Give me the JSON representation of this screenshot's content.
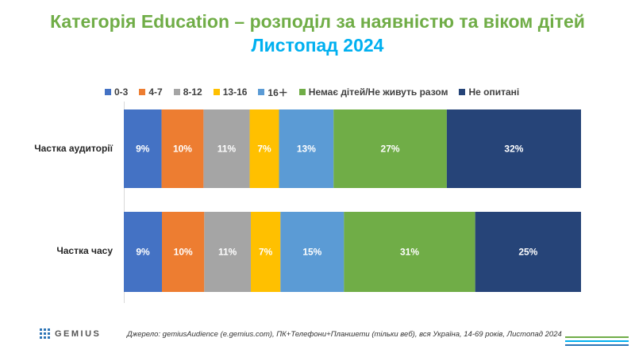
{
  "chart_data": {
    "type": "stacked-bar-100",
    "title": "Категорія Education – розподіл за наявністю та віком дітей",
    "subtitle": "Листопад 2024",
    "legend_position": "top",
    "categories": [
      "Частка аудиторії",
      "Частка часу"
    ],
    "series": [
      {
        "name": "0-3",
        "color": "#4472c4",
        "values": [
          9,
          9
        ]
      },
      {
        "name": "4-7",
        "color": "#ed7d31",
        "values": [
          10,
          10
        ]
      },
      {
        "name": "8-12",
        "color": "#a5a5a5",
        "values": [
          11,
          11
        ]
      },
      {
        "name": "13-16",
        "color": "#ffc000",
        "values": [
          7,
          7
        ]
      },
      {
        "name": "16＋",
        "color": "#5b9bd5",
        "values": [
          13,
          15
        ]
      },
      {
        "name": "Немає дітей/Не живуть разом",
        "color": "#70ad47",
        "values": [
          27,
          31
        ]
      },
      {
        "name": "Не опитані",
        "color": "#264478",
        "values": [
          32,
          25
        ]
      }
    ],
    "labels": [
      [
        "9%",
        "10%",
        "11%",
        "7%",
        "13%",
        "27%",
        "32%"
      ],
      [
        "9%",
        "10%",
        "11%",
        "7%",
        "15%",
        "31%",
        "25%"
      ]
    ]
  },
  "footer": {
    "brand": "GEMIUS",
    "source": "Джерело: gemiusAudience (e.gemius.com), ПК+Телефони+Планшети (тільки веб), вся Україна, 14-69 років, Листопад 2024"
  },
  "colors": {
    "title": "#70ad47",
    "subtitle": "#00b0f0",
    "footer_lines": [
      "#70ad47",
      "#00b0f0",
      "#2e75b6"
    ]
  }
}
